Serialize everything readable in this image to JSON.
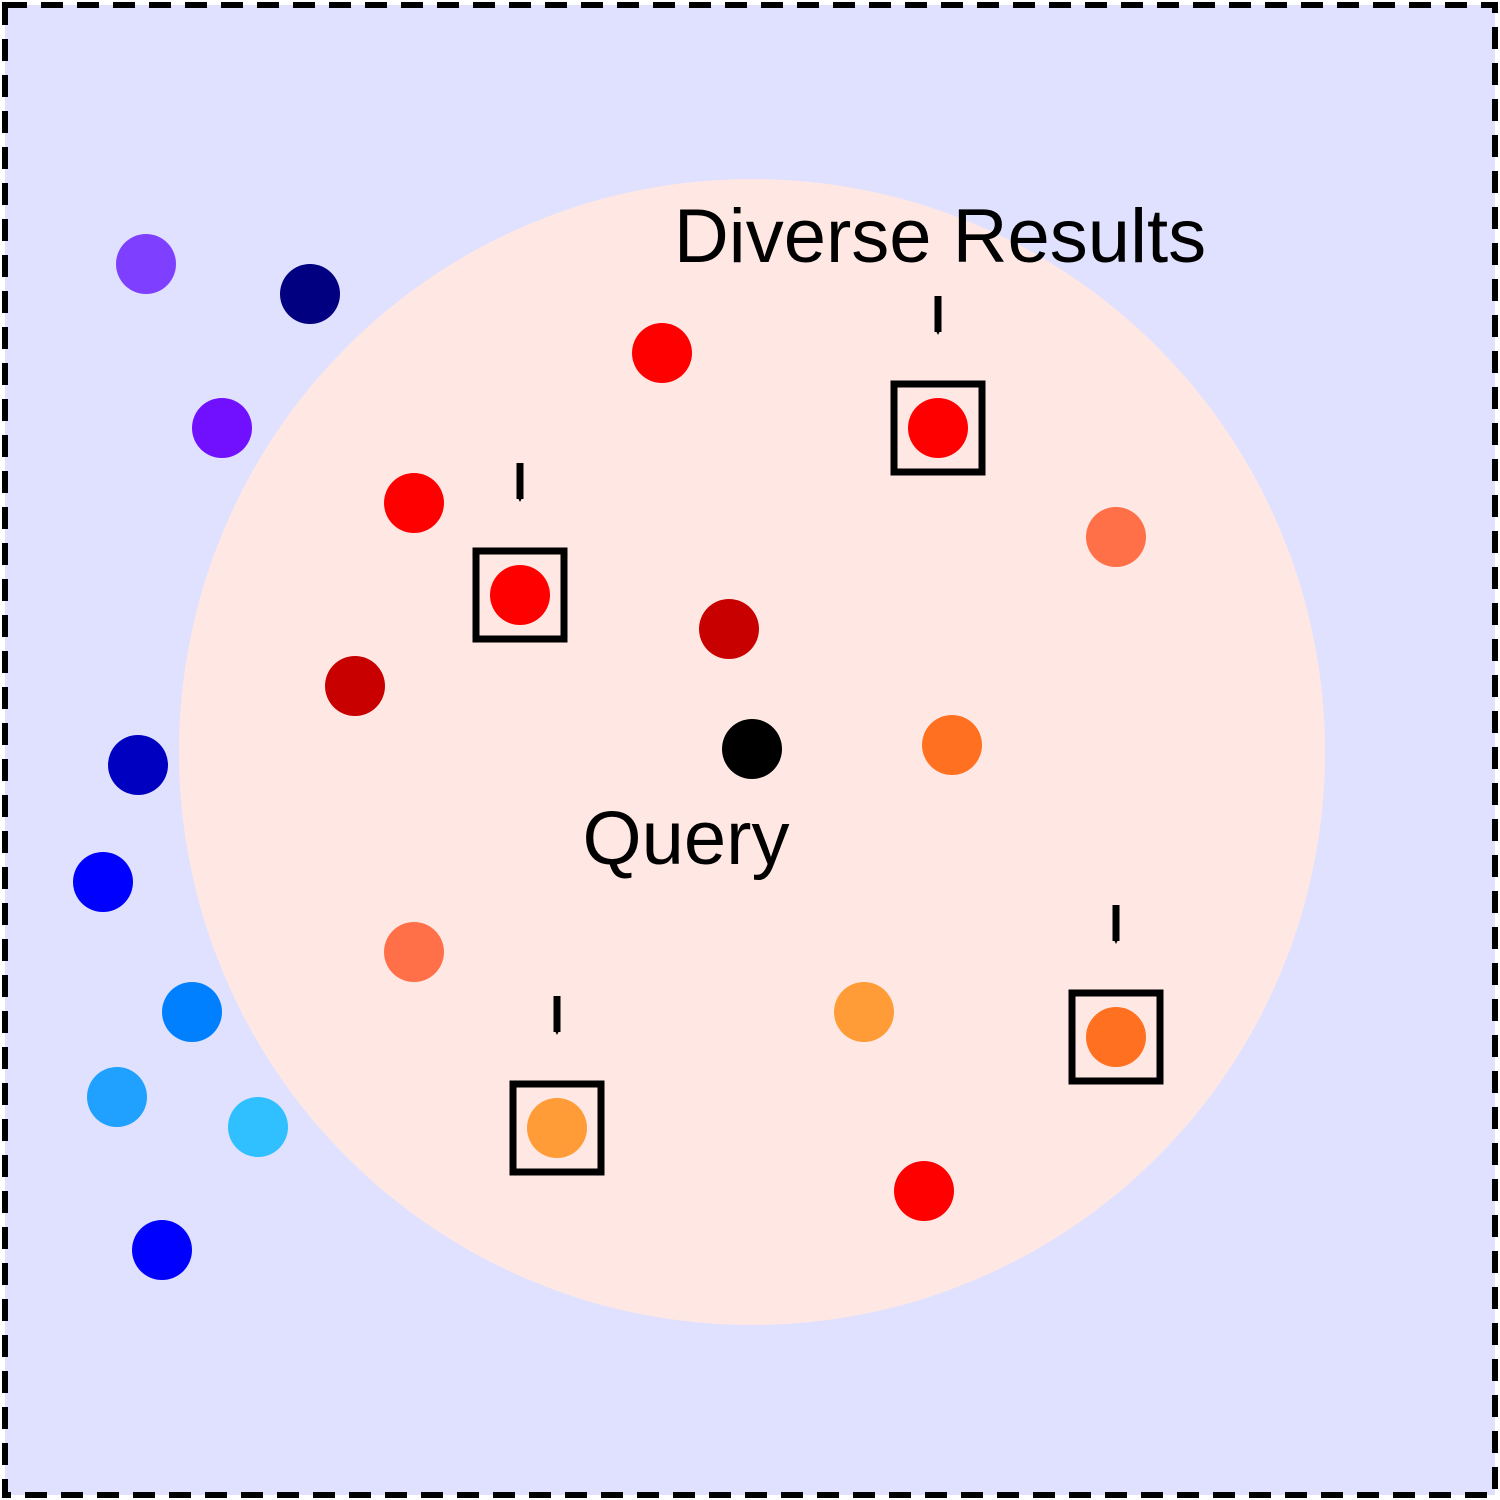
{
  "colors": {
    "background": "#e0e0ff",
    "border": "#000000",
    "neighborhood": "#ffe8e4",
    "query_point": "#000000",
    "marker": "#000000"
  },
  "labels": {
    "diverse_results": "Diverse Results",
    "query": "Query"
  },
  "points": [
    {
      "color": "#7f3fff"
    },
    {
      "color": "#000080"
    },
    {
      "color": "#7010ff"
    },
    {
      "color": "#0000c0"
    },
    {
      "color": "#0000ff"
    },
    {
      "color": "#0080ff"
    },
    {
      "color": "#20a0ff"
    },
    {
      "color": "#30bfff"
    },
    {
      "color": "#0000ff"
    },
    {
      "color": "#ff0000"
    },
    {
      "color": "#ff0000"
    },
    {
      "color": "#c80000"
    },
    {
      "color": "#c80000"
    },
    {
      "color": "#ff7048"
    },
    {
      "color": "#ff7020"
    },
    {
      "color": "#ff7048"
    },
    {
      "color": "#ff9c38"
    },
    {
      "color": "#ff0000"
    },
    {
      "color": "#ff0000",
      "selected": true
    },
    {
      "color": "#ff0000",
      "selected": true
    },
    {
      "color": "#ff9c38",
      "selected": true
    },
    {
      "color": "#ff7020",
      "selected": true
    }
  ]
}
